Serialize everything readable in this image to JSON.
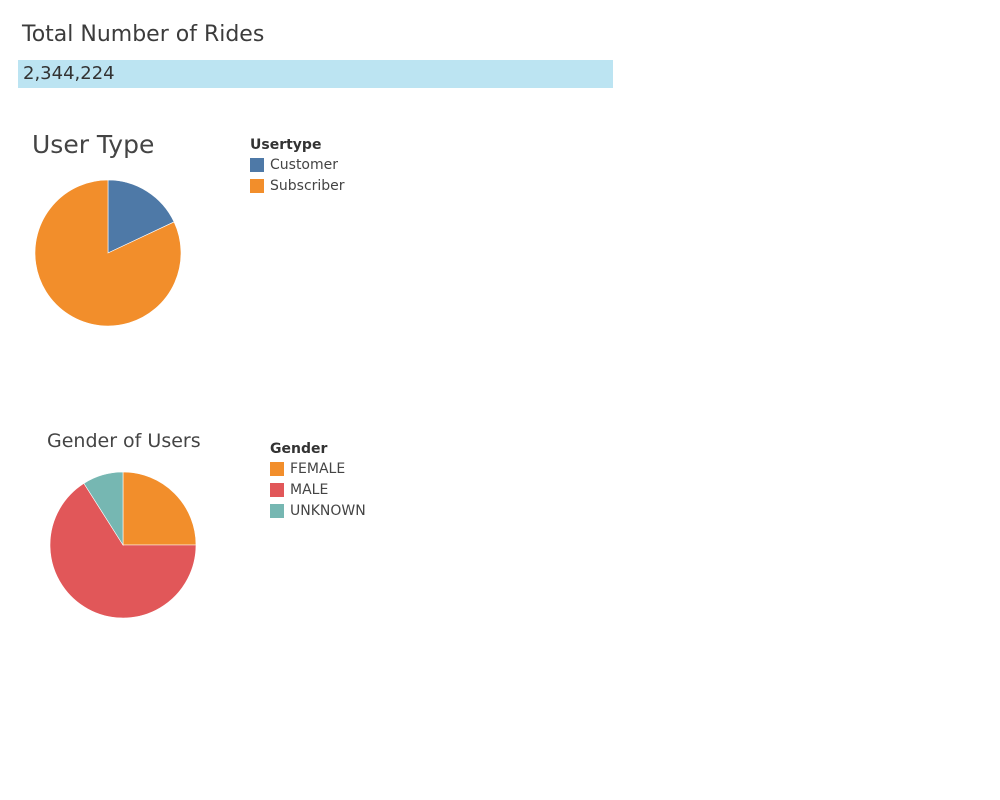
{
  "kpi": {
    "title": "Total Number of Rides",
    "value": "2,344,224"
  },
  "chart_data": [
    {
      "type": "pie",
      "title": "User Type",
      "legend_title": "Usertype",
      "legend_position": "right",
      "categories": [
        "Customer",
        "Subscriber"
      ],
      "values": [
        18,
        82
      ],
      "colors": [
        "#4e79a7",
        "#f28e2b"
      ]
    },
    {
      "type": "pie",
      "title": "Gender of Users",
      "legend_title": "Gender",
      "legend_position": "right",
      "categories": [
        "FEMALE",
        "MALE",
        "UNKNOWN"
      ],
      "values": [
        25,
        66,
        9
      ],
      "colors": [
        "#f28e2b",
        "#e15759",
        "#76b7b2"
      ]
    }
  ]
}
